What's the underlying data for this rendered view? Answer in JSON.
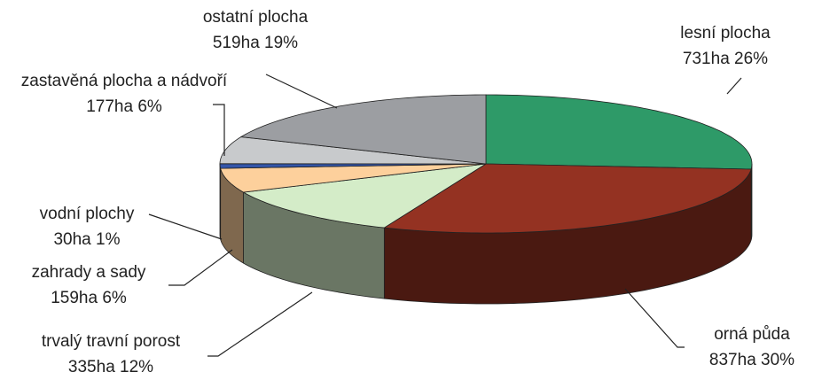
{
  "chart_data": {
    "type": "pie",
    "categories": [
      "lesní plocha",
      "orná půda",
      "trvalý travní porost",
      "zahrady a sady",
      "vodní plochy",
      "zastavěná plocha a nádvoří",
      "ostatní plocha"
    ],
    "values": [
      731,
      837,
      335,
      159,
      30,
      177,
      519
    ],
    "value_labels": [
      "731ha 26%",
      "837ha 30%",
      "335ha 12%",
      "159ha 6%",
      "30ha 1%",
      "177ha 6%",
      "519ha 19%"
    ],
    "colors": [
      "#2e9a68",
      "#943222",
      "#d4ecc8",
      "#fdd09c",
      "#3355a8",
      "#c8cacc",
      "#9c9ea2"
    ]
  }
}
